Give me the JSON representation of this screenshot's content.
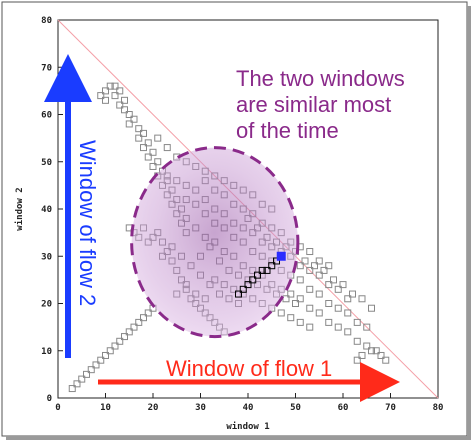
{
  "chart_data": {
    "type": "scatter",
    "xlabel": "window 1",
    "ylabel": "window 2",
    "xlim": [
      0,
      80
    ],
    "ylim": [
      0,
      80
    ],
    "x_ticks": [
      "0",
      "10",
      "20",
      "30",
      "40",
      "50",
      "60",
      "70",
      "80"
    ],
    "y_ticks": [
      "0",
      "10",
      "20",
      "30",
      "40",
      "50",
      "60",
      "70",
      "80"
    ],
    "grid": false,
    "reference_line": {
      "from": [
        0,
        80
      ],
      "to": [
        80,
        0
      ],
      "color": "#f4a0a8"
    },
    "series": [
      {
        "color": "#888888",
        "marker": "open-square",
        "points": [
          [
            3,
            2
          ],
          [
            4,
            3
          ],
          [
            5,
            4
          ],
          [
            6,
            5
          ],
          [
            7,
            6
          ],
          [
            8,
            7
          ],
          [
            9,
            8
          ],
          [
            10,
            9
          ],
          [
            11,
            10
          ],
          [
            12,
            11
          ],
          [
            13,
            12
          ],
          [
            14,
            13
          ],
          [
            15,
            14
          ],
          [
            16,
            15
          ],
          [
            17,
            16
          ],
          [
            18,
            17
          ],
          [
            19,
            18
          ],
          [
            20,
            19
          ],
          [
            63,
            8
          ],
          [
            64,
            9
          ],
          [
            66,
            10
          ],
          [
            68,
            9
          ],
          [
            69,
            8
          ],
          [
            9,
            64
          ],
          [
            10,
            65
          ],
          [
            10,
            63
          ],
          [
            11,
            66
          ],
          [
            12,
            66
          ],
          [
            12,
            64
          ],
          [
            13,
            65
          ],
          [
            13,
            62
          ],
          [
            14,
            61
          ],
          [
            14,
            63
          ],
          [
            15,
            60
          ],
          [
            15,
            58
          ],
          [
            16,
            59
          ],
          [
            17,
            57
          ],
          [
            17,
            55
          ],
          [
            18,
            56
          ],
          [
            18,
            53
          ],
          [
            19,
            54
          ],
          [
            19,
            51
          ],
          [
            20,
            52
          ],
          [
            20,
            49
          ],
          [
            21,
            50
          ],
          [
            21,
            47
          ],
          [
            22,
            48
          ],
          [
            22,
            45
          ],
          [
            23,
            46
          ],
          [
            23,
            43
          ],
          [
            24,
            44
          ],
          [
            24,
            41
          ],
          [
            25,
            42
          ],
          [
            25,
            39
          ],
          [
            26,
            40
          ],
          [
            26,
            37
          ],
          [
            27,
            38
          ],
          [
            27,
            35
          ],
          [
            29,
            36
          ],
          [
            31,
            34
          ],
          [
            33,
            33
          ],
          [
            35,
            31
          ],
          [
            37,
            30
          ],
          [
            39,
            28
          ],
          [
            41,
            27
          ],
          [
            43,
            26
          ],
          [
            45,
            24
          ],
          [
            47,
            23
          ],
          [
            49,
            22
          ],
          [
            51,
            21
          ],
          [
            53,
            19
          ],
          [
            55,
            18
          ],
          [
            57,
            16
          ],
          [
            59,
            15
          ],
          [
            61,
            14
          ],
          [
            63,
            12
          ],
          [
            65,
            11
          ],
          [
            67,
            10
          ],
          [
            31,
            39
          ],
          [
            33,
            37
          ],
          [
            35,
            36
          ],
          [
            37,
            34
          ],
          [
            39,
            33
          ],
          [
            41,
            31
          ],
          [
            43,
            30
          ],
          [
            45,
            29
          ],
          [
            47,
            27
          ],
          [
            49,
            26
          ],
          [
            51,
            25
          ],
          [
            53,
            23
          ],
          [
            55,
            22
          ],
          [
            57,
            20
          ],
          [
            59,
            19
          ],
          [
            61,
            18
          ],
          [
            63,
            16
          ],
          [
            65,
            15
          ],
          [
            27,
            42
          ],
          [
            29,
            41
          ],
          [
            31,
            42
          ],
          [
            33,
            40
          ],
          [
            35,
            39
          ],
          [
            37,
            37
          ],
          [
            39,
            36
          ],
          [
            41,
            35
          ],
          [
            43,
            33
          ],
          [
            45,
            32
          ],
          [
            47,
            31
          ],
          [
            49,
            30
          ],
          [
            51,
            28
          ],
          [
            53,
            27
          ],
          [
            55,
            26
          ],
          [
            57,
            24
          ],
          [
            59,
            23
          ],
          [
            61,
            21
          ],
          [
            23,
            47
          ],
          [
            25,
            46
          ],
          [
            27,
            45
          ],
          [
            29,
            44
          ],
          [
            31,
            46
          ],
          [
            33,
            44
          ],
          [
            35,
            43
          ],
          [
            37,
            41
          ],
          [
            39,
            40
          ],
          [
            41,
            39
          ],
          [
            43,
            37
          ],
          [
            45,
            36
          ],
          [
            47,
            35
          ],
          [
            49,
            33
          ],
          [
            51,
            32
          ],
          [
            53,
            31
          ],
          [
            55,
            29
          ],
          [
            57,
            28
          ],
          [
            19,
            33
          ],
          [
            20,
            34
          ],
          [
            21,
            35
          ],
          [
            22,
            33
          ],
          [
            23,
            31
          ],
          [
            24,
            29
          ],
          [
            25,
            27
          ],
          [
            26,
            25
          ],
          [
            27,
            23
          ],
          [
            28,
            21
          ],
          [
            29,
            20
          ],
          [
            30,
            19
          ],
          [
            31,
            18
          ],
          [
            32,
            17
          ],
          [
            33,
            16
          ],
          [
            34,
            15
          ],
          [
            35,
            14
          ],
          [
            22,
            30
          ],
          [
            24,
            32
          ],
          [
            26,
            30
          ],
          [
            28,
            28
          ],
          [
            30,
            26
          ],
          [
            32,
            24
          ],
          [
            34,
            22
          ],
          [
            36,
            21
          ],
          [
            38,
            20
          ],
          [
            25,
            22
          ],
          [
            27,
            24
          ],
          [
            29,
            22
          ],
          [
            31,
            21
          ],
          [
            21,
            55
          ],
          [
            23,
            53
          ],
          [
            25,
            51
          ],
          [
            27,
            50
          ],
          [
            29,
            49
          ],
          [
            31,
            48
          ],
          [
            33,
            47
          ],
          [
            35,
            46
          ],
          [
            37,
            45
          ],
          [
            39,
            44
          ],
          [
            41,
            43
          ],
          [
            43,
            41
          ],
          [
            45,
            40
          ],
          [
            33,
            25
          ],
          [
            35,
            24
          ],
          [
            37,
            23
          ],
          [
            39,
            22
          ],
          [
            41,
            21
          ],
          [
            43,
            20
          ],
          [
            45,
            19
          ],
          [
            47,
            18
          ],
          [
            49,
            17
          ],
          [
            51,
            16
          ],
          [
            53,
            15
          ],
          [
            15,
            36
          ],
          [
            16,
            35
          ],
          [
            17,
            34
          ],
          [
            18,
            36
          ],
          [
            30,
            30
          ],
          [
            32,
            32
          ],
          [
            34,
            29
          ],
          [
            36,
            27
          ],
          [
            38,
            26
          ],
          [
            40,
            25
          ],
          [
            42,
            24
          ],
          [
            44,
            23
          ],
          [
            46,
            22
          ],
          [
            48,
            21
          ],
          [
            50,
            20
          ],
          [
            40,
            38
          ],
          [
            42,
            36
          ],
          [
            44,
            34
          ],
          [
            46,
            33
          ],
          [
            48,
            32
          ],
          [
            50,
            31
          ],
          [
            52,
            29
          ],
          [
            54,
            28
          ],
          [
            56,
            27
          ],
          [
            58,
            25
          ],
          [
            60,
            24
          ],
          [
            62,
            22
          ],
          [
            64,
            21
          ],
          [
            66,
            19
          ]
        ]
      },
      {
        "color": "#000000",
        "marker": "open-square",
        "points": [
          [
            38,
            22
          ],
          [
            39,
            23
          ],
          [
            40,
            24
          ],
          [
            41,
            25
          ],
          [
            42,
            26
          ],
          [
            43,
            27
          ],
          [
            44,
            27
          ],
          [
            45,
            28
          ],
          [
            46,
            29
          ]
        ]
      },
      {
        "color": "#2b2bff",
        "marker": "filled-square",
        "points": [
          [
            47,
            30
          ]
        ]
      }
    ],
    "annotations": [
      {
        "text": "The two windows",
        "color": "#8a2a8a"
      },
      {
        "text": "are similar most",
        "color": "#8a2a8a"
      },
      {
        "text": "of the time",
        "color": "#8a2a8a"
      },
      {
        "text": "Window of flow 2",
        "color": "#1a3cff"
      },
      {
        "text": "Window of flow 1",
        "color": "#ff2a1a"
      }
    ],
    "highlight_ellipse": {
      "center": [
        33,
        33
      ],
      "radius": [
        17.5,
        20
      ],
      "color": "#b070c0"
    }
  }
}
